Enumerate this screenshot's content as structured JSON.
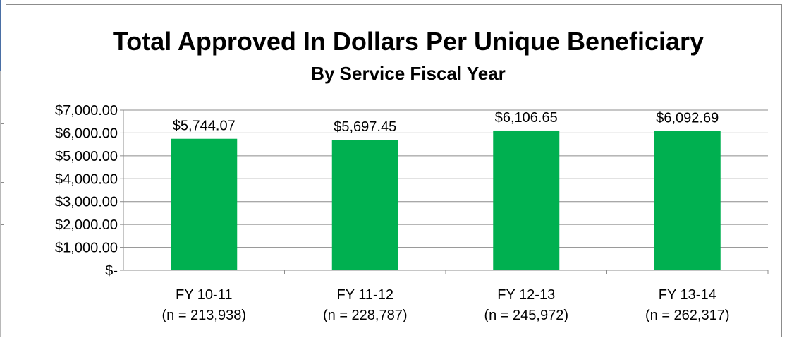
{
  "chart_data": {
    "type": "bar",
    "title": "Total Approved In Dollars Per Unique Beneficiary",
    "subtitle": "By Service Fiscal Year",
    "categories": [
      "FY 10-11",
      "FY 11-12",
      "FY 12-13",
      "FY 13-14"
    ],
    "category_sublabels": [
      "(n = 213,938)",
      "(n = 228,787)",
      "(n = 245,972)",
      "(n = 262,317)"
    ],
    "values": [
      5744.07,
      5697.45,
      6106.65,
      6092.69
    ],
    "data_labels": [
      "$5,744.07",
      "$5,697.45",
      "$6,106.65",
      "$6,092.69"
    ],
    "ylim": [
      0,
      7000
    ],
    "yticks": [
      0,
      1000,
      2000,
      3000,
      4000,
      5000,
      6000,
      7000
    ],
    "ytick_labels": [
      "$-",
      "$1,000.00",
      "$2,000.00",
      "$3,000.00",
      "$4,000.00",
      "$5,000.00",
      "$6,000.00",
      "$7,000.00"
    ],
    "bar_color": "#00b050",
    "grid": true,
    "legend": "none"
  }
}
